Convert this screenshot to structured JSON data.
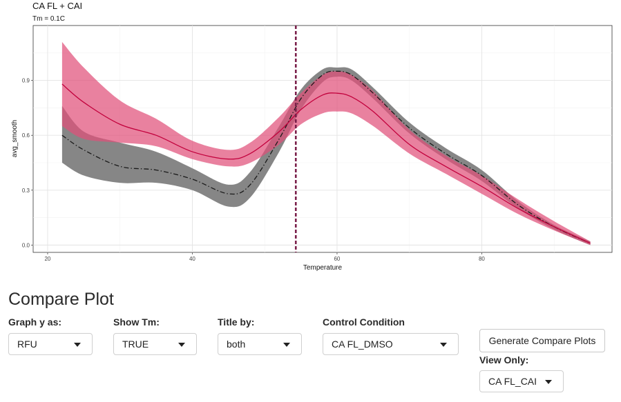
{
  "chart_data": {
    "type": "line",
    "title": "CA FL + CAI",
    "subtitle": "Tm = 0.1C",
    "xlabel": "Temperature",
    "ylabel": "avg_smooth",
    "xlim": [
      18,
      98
    ],
    "ylim": [
      -0.04,
      1.2
    ],
    "x_ticks": [
      20,
      40,
      60,
      80
    ],
    "y_ticks": [
      0.0,
      0.3,
      0.6,
      0.9
    ],
    "y_tick_labels": [
      "0.0",
      "0.3",
      "0.6",
      "0.9"
    ],
    "grid": true,
    "vline": {
      "x": 54.3,
      "color": "#7a1f4a",
      "style": "dashed"
    },
    "series": [
      {
        "color": "#808080",
        "line_color": "#1a1a1a",
        "line_style": "dashdot",
        "x": [
          22,
          25,
          30,
          35,
          40,
          45,
          48,
          52,
          55,
          58,
          60,
          62,
          65,
          70,
          75,
          80,
          85,
          90,
          95
        ],
        "y": [
          0.6,
          0.52,
          0.43,
          0.41,
          0.36,
          0.28,
          0.33,
          0.58,
          0.8,
          0.93,
          0.95,
          0.93,
          0.83,
          0.64,
          0.5,
          0.38,
          0.22,
          0.1,
          0.01
        ],
        "lower": [
          0.45,
          0.38,
          0.34,
          0.34,
          0.3,
          0.21,
          0.26,
          0.51,
          0.74,
          0.89,
          0.92,
          0.9,
          0.8,
          0.61,
          0.47,
          0.35,
          0.2,
          0.085,
          0.0
        ],
        "upper": [
          0.76,
          0.62,
          0.56,
          0.51,
          0.42,
          0.33,
          0.4,
          0.65,
          0.85,
          0.96,
          0.97,
          0.96,
          0.86,
          0.67,
          0.53,
          0.41,
          0.24,
          0.11,
          0.02
        ]
      },
      {
        "color": "#e0507a",
        "line_color": "#c2003c",
        "line_style": "solid",
        "x": [
          22,
          25,
          30,
          35,
          40,
          45,
          48,
          52,
          55,
          58,
          60,
          62,
          65,
          70,
          75,
          80,
          85,
          90,
          95
        ],
        "y": [
          0.88,
          0.78,
          0.66,
          0.6,
          0.51,
          0.47,
          0.5,
          0.62,
          0.74,
          0.82,
          0.83,
          0.81,
          0.73,
          0.55,
          0.43,
          0.32,
          0.2,
          0.1,
          0.01
        ],
        "lower": [
          0.65,
          0.58,
          0.56,
          0.54,
          0.47,
          0.43,
          0.45,
          0.55,
          0.66,
          0.72,
          0.73,
          0.72,
          0.65,
          0.5,
          0.39,
          0.28,
          0.17,
          0.08,
          0.0
        ],
        "upper": [
          1.11,
          0.97,
          0.79,
          0.69,
          0.57,
          0.52,
          0.56,
          0.7,
          0.83,
          0.93,
          0.95,
          0.93,
          0.84,
          0.63,
          0.49,
          0.38,
          0.25,
          0.13,
          0.02
        ]
      }
    ]
  },
  "controls": {
    "section_title": "Compare Plot",
    "graph_y_as": {
      "label": "Graph y as:",
      "value": "RFU"
    },
    "show_tm": {
      "label": "Show Tm:",
      "value": "TRUE"
    },
    "title_by": {
      "label": "Title by:",
      "value": "both"
    },
    "control_condition": {
      "label": "Control Condition",
      "value": "CA FL_DMSO"
    },
    "generate_button": "Generate Compare Plots",
    "view_only": {
      "label": "View Only:",
      "value": "CA FL_CAI"
    }
  }
}
